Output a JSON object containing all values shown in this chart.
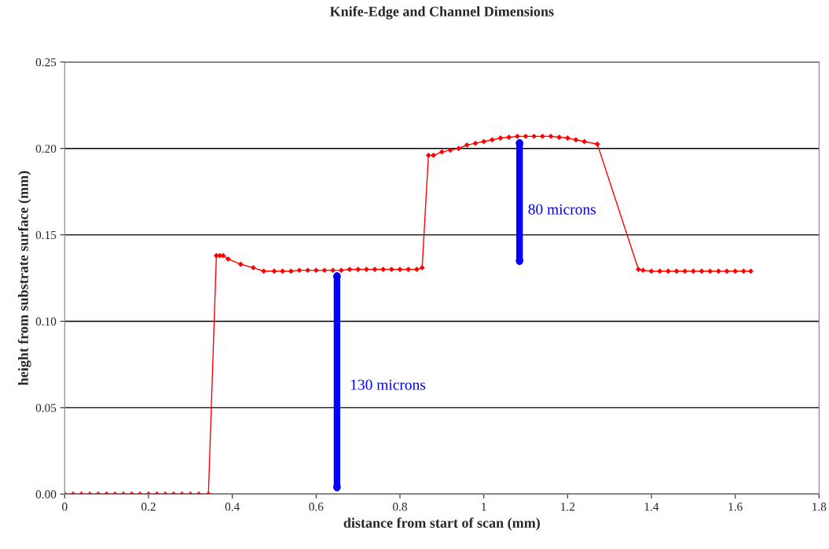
{
  "chart_data": {
    "type": "line",
    "title": "Knife-Edge and Channel Dimensions",
    "xlabel": "distance from start of scan (mm)",
    "ylabel": "height from substrate surface (mm)",
    "xlim": [
      0,
      1.8
    ],
    "xticks": [
      0,
      0.2,
      0.4,
      0.6,
      0.8,
      1,
      1.2,
      1.4,
      1.6,
      1.8
    ],
    "ylim": [
      0,
      0.25
    ],
    "yticks": [
      {
        "value": 0,
        "label": "0.00"
      },
      {
        "value": 0.05,
        "label": "0.05"
      },
      {
        "value": 0.1,
        "label": "0.10"
      },
      {
        "value": 0.15,
        "label": "0.15"
      },
      {
        "value": 0.2,
        "label": "0.20"
      },
      {
        "value": 0.25,
        "label": "0.25"
      }
    ],
    "grid": "y",
    "marker": "diamond",
    "line_style": "solid",
    "series": [
      {
        "color": "#ff0000",
        "x": [
          0,
          0.02,
          0.04,
          0.06,
          0.08,
          0.1,
          0.12,
          0.14,
          0.16,
          0.18,
          0.2,
          0.22,
          0.24,
          0.26,
          0.28,
          0.3,
          0.32,
          0.343,
          0.362,
          0.37,
          0.378,
          0.39,
          0.42,
          0.45,
          0.475,
          0.5,
          0.52,
          0.54,
          0.56,
          0.58,
          0.6,
          0.62,
          0.64,
          0.66,
          0.68,
          0.7,
          0.72,
          0.74,
          0.76,
          0.78,
          0.8,
          0.82,
          0.84,
          0.853,
          0.868,
          0.88,
          0.9,
          0.92,
          0.94,
          0.96,
          0.98,
          1.0,
          1.02,
          1.04,
          1.06,
          1.08,
          1.1,
          1.12,
          1.14,
          1.16,
          1.18,
          1.2,
          1.22,
          1.24,
          1.271,
          1.369,
          1.38,
          1.4,
          1.42,
          1.44,
          1.46,
          1.48,
          1.5,
          1.52,
          1.54,
          1.56,
          1.58,
          1.6,
          1.62,
          1.637
        ],
        "values": [
          0,
          0,
          0,
          0,
          0,
          0,
          0,
          0,
          0,
          0,
          0,
          0,
          0,
          0,
          0,
          0,
          0,
          0,
          0.138,
          0.138,
          0.138,
          0.136,
          0.133,
          0.131,
          0.129,
          0.129,
          0.129,
          0.129,
          0.1295,
          0.1295,
          0.1295,
          0.1295,
          0.1295,
          0.1295,
          0.13,
          0.13,
          0.13,
          0.13,
          0.13,
          0.13,
          0.13,
          0.13,
          0.13,
          0.131,
          0.196,
          0.196,
          0.198,
          0.199,
          0.2,
          0.202,
          0.203,
          0.204,
          0.205,
          0.206,
          0.2065,
          0.207,
          0.207,
          0.207,
          0.207,
          0.207,
          0.2065,
          0.206,
          0.205,
          0.204,
          0.2025,
          0.13,
          0.1295,
          0.129,
          0.129,
          0.129,
          0.129,
          0.129,
          0.129,
          0.129,
          0.129,
          0.129,
          0.129,
          0.129,
          0.129,
          0.129
        ]
      }
    ],
    "annotations": [
      "130 microns",
      "80 microns"
    ]
  }
}
